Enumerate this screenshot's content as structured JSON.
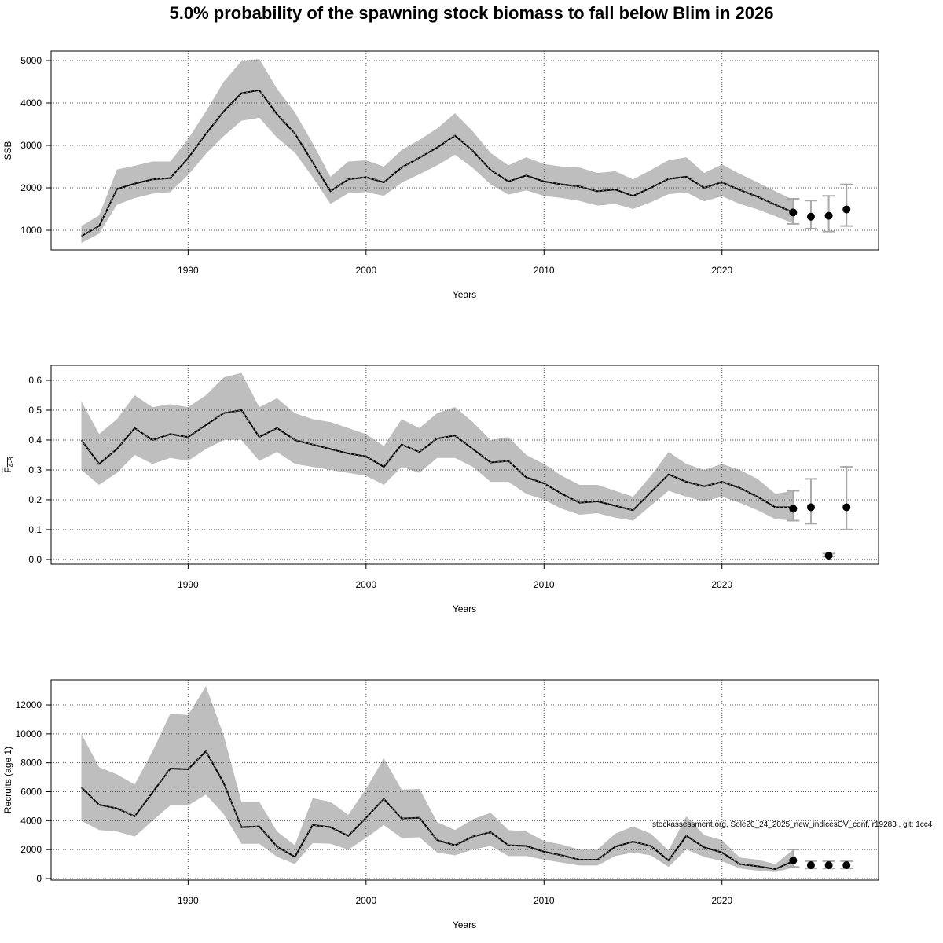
{
  "title": "5.0% probability of the spawning stock biomass to fall below Blim in 2026",
  "annotation": "stockassessment.org, Sole20_24_2025_new_indicesCV_conf, r19283 , git: 1cc4",
  "chart_data": [
    {
      "type": "line",
      "name": "ssb",
      "ylabel": "SSB",
      "xlabel": "Years",
      "xlim": [
        1982.3,
        2028.8
      ],
      "ylim": [
        537,
        5222
      ],
      "xticks": [
        1990,
        2000,
        2010,
        2020
      ],
      "yticks": [
        1000,
        2000,
        3000,
        4000,
        5000
      ],
      "years": [
        1984,
        1985,
        1986,
        1987,
        1988,
        1989,
        1990,
        1991,
        1992,
        1993,
        1994,
        1995,
        1996,
        1997,
        1998,
        1999,
        2000,
        2001,
        2002,
        2003,
        2004,
        2005,
        2006,
        2007,
        2008,
        2009,
        2010,
        2011,
        2012,
        2013,
        2014,
        2015,
        2016,
        2017,
        2018,
        2019,
        2020,
        2021,
        2022,
        2023,
        2024
      ],
      "estimate": [
        860,
        1100,
        1970,
        2100,
        2200,
        2230,
        2700,
        3270,
        3800,
        4230,
        4300,
        3730,
        3280,
        2600,
        1920,
        2200,
        2250,
        2130,
        2480,
        2710,
        2950,
        3230,
        2870,
        2420,
        2150,
        2290,
        2150,
        2080,
        2030,
        1920,
        1960,
        1810,
        2000,
        2210,
        2260,
        2000,
        2130,
        1950,
        1790,
        1600,
        1420
      ],
      "upper": [
        1100,
        1350,
        2430,
        2520,
        2620,
        2620,
        3150,
        3800,
        4500,
        4990,
        5040,
        4330,
        3780,
        3050,
        2260,
        2620,
        2650,
        2500,
        2890,
        3130,
        3400,
        3760,
        3330,
        2820,
        2530,
        2720,
        2560,
        2500,
        2480,
        2350,
        2390,
        2200,
        2420,
        2650,
        2720,
        2350,
        2550,
        2330,
        2130,
        1920,
        1720
      ],
      "lower": [
        700,
        920,
        1600,
        1760,
        1860,
        1900,
        2300,
        2800,
        3220,
        3580,
        3650,
        3180,
        2830,
        2250,
        1620,
        1870,
        1900,
        1810,
        2120,
        2320,
        2530,
        2780,
        2470,
        2080,
        1840,
        1940,
        1810,
        1760,
        1690,
        1580,
        1620,
        1500,
        1660,
        1850,
        1890,
        1680,
        1800,
        1620,
        1490,
        1330,
        1160
      ],
      "forecast": {
        "years": [
          2024,
          2025,
          2026,
          2027
        ],
        "median": [
          1420,
          1320,
          1340,
          1490
        ],
        "low": [
          1150,
          1040,
          970,
          1100
        ],
        "high": [
          1740,
          1700,
          1810,
          2080
        ]
      }
    },
    {
      "type": "line",
      "name": "fbar",
      "ylabel": "F",
      "ylabel_sub": "4-8",
      "xlabel": "Years",
      "xlim": [
        1982.3,
        2028.8
      ],
      "ylim": [
        -0.016,
        0.65
      ],
      "xticks": [
        1990,
        2000,
        2010,
        2020
      ],
      "yticks": [
        0.0,
        0.1,
        0.2,
        0.3,
        0.4,
        0.5,
        0.6
      ],
      "years": [
        1984,
        1985,
        1986,
        1987,
        1988,
        1989,
        1990,
        1991,
        1992,
        1993,
        1994,
        1995,
        1996,
        1997,
        1998,
        1999,
        2000,
        2001,
        2002,
        2003,
        2004,
        2005,
        2006,
        2007,
        2008,
        2009,
        2010,
        2011,
        2012,
        2013,
        2014,
        2015,
        2016,
        2017,
        2018,
        2019,
        2020,
        2021,
        2022,
        2023,
        2024
      ],
      "estimate": [
        0.4,
        0.32,
        0.37,
        0.44,
        0.4,
        0.42,
        0.41,
        0.45,
        0.49,
        0.5,
        0.41,
        0.44,
        0.4,
        0.385,
        0.37,
        0.355,
        0.345,
        0.31,
        0.385,
        0.36,
        0.405,
        0.415,
        0.37,
        0.325,
        0.33,
        0.275,
        0.255,
        0.22,
        0.19,
        0.195,
        0.18,
        0.165,
        0.225,
        0.285,
        0.26,
        0.245,
        0.26,
        0.24,
        0.21,
        0.175,
        0.175
      ],
      "upper": [
        0.53,
        0.42,
        0.47,
        0.55,
        0.51,
        0.52,
        0.51,
        0.55,
        0.61,
        0.625,
        0.51,
        0.54,
        0.49,
        0.47,
        0.46,
        0.44,
        0.42,
        0.38,
        0.47,
        0.44,
        0.49,
        0.51,
        0.46,
        0.4,
        0.41,
        0.35,
        0.32,
        0.28,
        0.25,
        0.25,
        0.23,
        0.21,
        0.28,
        0.36,
        0.32,
        0.3,
        0.32,
        0.3,
        0.27,
        0.22,
        0.23
      ],
      "lower": [
        0.3,
        0.25,
        0.29,
        0.35,
        0.32,
        0.34,
        0.33,
        0.37,
        0.4,
        0.4,
        0.33,
        0.36,
        0.32,
        0.31,
        0.3,
        0.29,
        0.28,
        0.25,
        0.31,
        0.29,
        0.34,
        0.34,
        0.31,
        0.26,
        0.26,
        0.22,
        0.2,
        0.17,
        0.15,
        0.155,
        0.14,
        0.13,
        0.18,
        0.23,
        0.21,
        0.195,
        0.21,
        0.19,
        0.165,
        0.135,
        0.13
      ],
      "forecast": {
        "years": [
          2024,
          2025,
          2026,
          2027
        ],
        "median": [
          0.17,
          0.175,
          0.013,
          0.175
        ],
        "low": [
          0.13,
          0.12,
          0.01,
          0.1
        ],
        "high": [
          0.23,
          0.27,
          0.02,
          0.31
        ]
      }
    },
    {
      "type": "line",
      "name": "recruits",
      "ylabel": "Recruits (age 1)",
      "xlabel": "Years",
      "xlim": [
        1982.3,
        2028.8
      ],
      "ylim": [
        -110,
        13740
      ],
      "xticks": [
        1990,
        2000,
        2010,
        2020
      ],
      "yticks": [
        0,
        2000,
        4000,
        6000,
        8000,
        10000,
        12000
      ],
      "years": [
        1984,
        1985,
        1986,
        1987,
        1988,
        1989,
        1990,
        1991,
        1992,
        1993,
        1994,
        1995,
        1996,
        1997,
        1998,
        1999,
        2000,
        2001,
        2002,
        2003,
        2004,
        2005,
        2006,
        2007,
        2008,
        2009,
        2010,
        2011,
        2012,
        2013,
        2014,
        2015,
        2016,
        2017,
        2018,
        2019,
        2020,
        2021,
        2022,
        2023,
        2024
      ],
      "estimate": [
        6300,
        5100,
        4850,
        4300,
        5950,
        7600,
        7550,
        8800,
        6600,
        3550,
        3600,
        2200,
        1500,
        3700,
        3550,
        2950,
        4200,
        5500,
        4150,
        4200,
        2650,
        2300,
        2900,
        3200,
        2300,
        2250,
        1850,
        1600,
        1300,
        1300,
        2200,
        2550,
        2250,
        1250,
        2950,
        2150,
        1800,
        1000,
        850,
        650,
        1200
      ],
      "upper": [
        10000,
        7700,
        7200,
        6500,
        8800,
        11400,
        11300,
        13300,
        9900,
        5300,
        5300,
        3250,
        2300,
        5550,
        5300,
        4400,
        6200,
        8300,
        6150,
        6200,
        3900,
        3350,
        4100,
        4550,
        3350,
        3250,
        2600,
        2350,
        2000,
        2000,
        3100,
        3600,
        3100,
        1950,
        4300,
        3000,
        2650,
        1450,
        1300,
        1000,
        2000
      ],
      "lower": [
        4000,
        3350,
        3250,
        2900,
        4000,
        5050,
        5050,
        5800,
        4450,
        2400,
        2400,
        1500,
        1000,
        2450,
        2400,
        2000,
        2800,
        3700,
        2800,
        2850,
        1800,
        1600,
        2000,
        2250,
        1550,
        1550,
        1300,
        1100,
        900,
        900,
        1550,
        1800,
        1600,
        800,
        2000,
        1500,
        1200,
        700,
        550,
        450,
        750
      ],
      "forecast": {
        "years": [
          2024,
          2025,
          2026,
          2027
        ],
        "median": [
          1250,
          920,
          920,
          920
        ],
        "low": [
          800,
          700,
          700,
          700
        ],
        "high": [
          2000,
          1200,
          1200,
          1200
        ]
      }
    }
  ]
}
